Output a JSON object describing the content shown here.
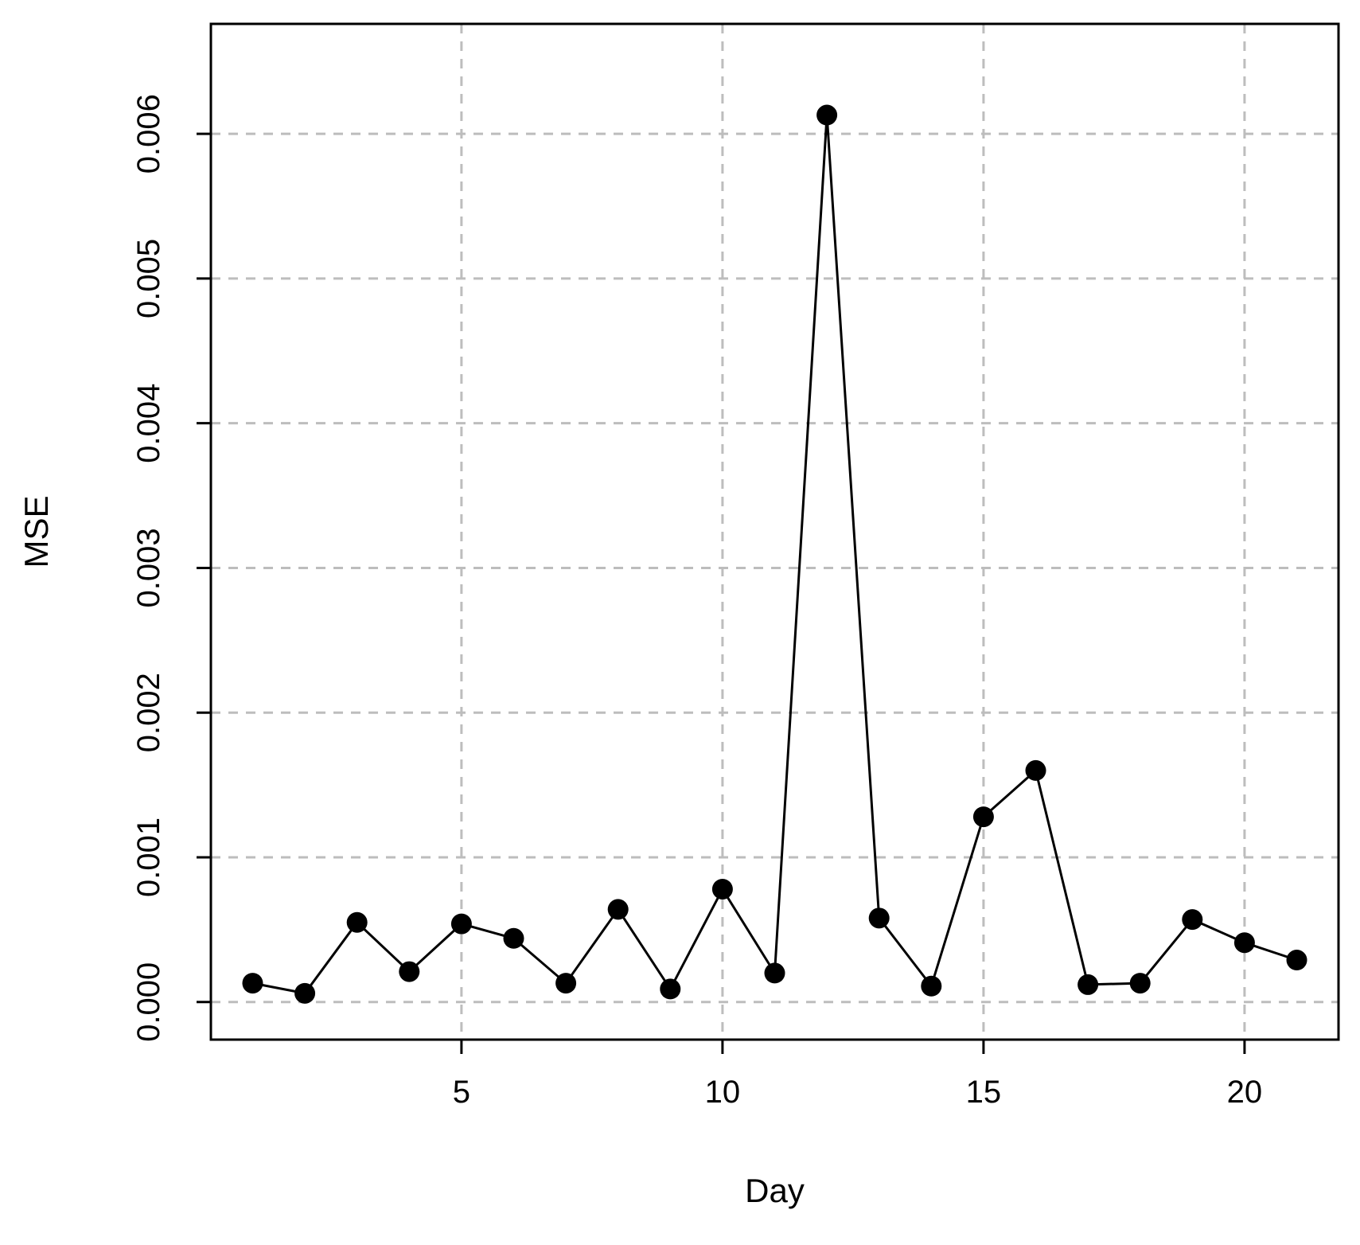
{
  "chart_data": {
    "type": "line",
    "title": "",
    "xlabel": "Day",
    "ylabel": "MSE",
    "xlim": [
      0.2,
      21.8
    ],
    "ylim": [
      -0.00026,
      0.00676
    ],
    "x_ticks": [
      5,
      10,
      15,
      20
    ],
    "x_tick_labels": [
      "5",
      "10",
      "15",
      "20"
    ],
    "y_ticks": [
      0,
      0.001,
      0.002,
      0.003,
      0.004,
      0.005,
      0.006
    ],
    "y_tick_labels": [
      "0.000",
      "0.001",
      "0.002",
      "0.003",
      "0.004",
      "0.005",
      "0.006"
    ],
    "grid": true,
    "grid_style": "dashed",
    "series": [
      {
        "x": [
          1,
          2,
          3,
          4,
          5,
          6,
          7,
          8,
          9,
          10,
          11,
          12,
          13,
          14,
          15,
          16,
          17,
          18,
          19,
          20,
          21
        ],
        "values": [
          0.00013,
          6e-05,
          0.00055,
          0.00021,
          0.00054,
          0.00044,
          0.00013,
          0.00064,
          9e-05,
          0.00078,
          0.0002,
          0.00613,
          0.00058,
          0.00011,
          0.00128,
          0.0016,
          0.00012,
          0.00013,
          0.00057,
          0.00041,
          0.00029
        ],
        "color": "#000000",
        "marker": "filled-circle"
      }
    ]
  }
}
